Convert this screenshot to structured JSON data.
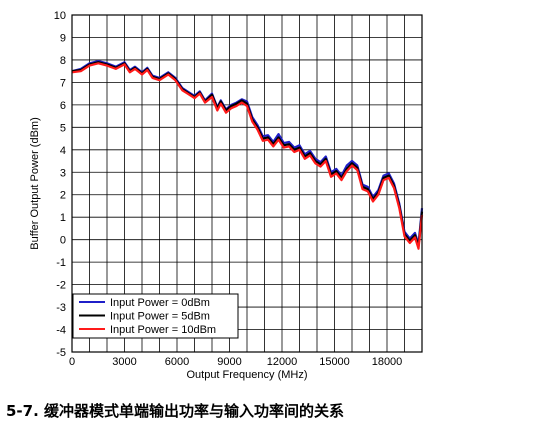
{
  "caption": "5-7. 缓冲器模式单端输出功率与输入功率间的关系",
  "chart_data": {
    "type": "line",
    "title": "",
    "xlabel": "Output Frequency (MHz)",
    "ylabel": "Buffer Output Power (dBm)",
    "xlim": [
      0,
      20000
    ],
    "ylim": [
      -5,
      10
    ],
    "xticks": [
      0,
      3000,
      6000,
      9000,
      12000,
      15000,
      18000
    ],
    "xtick_labels": [
      "0",
      "3000",
      "6000",
      "9000",
      "12000",
      "15000",
      "18000"
    ],
    "yticks": [
      -5,
      -4,
      -3,
      -2,
      -1,
      0,
      1,
      2,
      3,
      4,
      5,
      6,
      7,
      8,
      9,
      10
    ],
    "ytick_labels": [
      "-5",
      "-4",
      "-3",
      "-2",
      "-1",
      "0",
      "1",
      "2",
      "3",
      "4",
      "5",
      "6",
      "7",
      "8",
      "9",
      "10"
    ],
    "grid": true,
    "legend_position": "bottom-left",
    "series": [
      {
        "name": "Input Power = 0dBm",
        "color": "#1f1fc8",
        "x": [
          0,
          500,
          1000,
          1500,
          2000,
          2500,
          3000,
          3300,
          3600,
          4000,
          4300,
          4600,
          5000,
          5500,
          5900,
          6300,
          6600,
          7000,
          7300,
          7600,
          8000,
          8300,
          8500,
          8800,
          9100,
          9400,
          9700,
          10000,
          10300,
          10600,
          10900,
          11200,
          11500,
          11800,
          12100,
          12400,
          12700,
          13000,
          13300,
          13600,
          13900,
          14200,
          14500,
          14800,
          15100,
          15400,
          15700,
          16000,
          16300,
          16600,
          16900,
          17200,
          17500,
          17800,
          18100,
          18400,
          18700,
          19000,
          19300,
          19600,
          19800,
          20000
        ],
        "y": [
          7.5,
          7.6,
          7.85,
          7.95,
          7.85,
          7.7,
          7.9,
          7.55,
          7.7,
          7.45,
          7.65,
          7.3,
          7.2,
          7.45,
          7.2,
          6.75,
          6.6,
          6.4,
          6.6,
          6.2,
          6.5,
          5.9,
          6.2,
          5.8,
          6.0,
          6.1,
          6.25,
          6.15,
          5.45,
          5.1,
          4.6,
          4.65,
          4.35,
          4.7,
          4.3,
          4.35,
          4.1,
          4.2,
          3.8,
          3.95,
          3.6,
          3.45,
          3.7,
          3.0,
          3.15,
          2.85,
          3.3,
          3.5,
          3.3,
          2.45,
          2.35,
          1.9,
          2.2,
          2.85,
          2.95,
          2.5,
          1.6,
          0.35,
          0.05,
          0.3,
          -0.2,
          1.4
        ]
      },
      {
        "name": "Input Power = 5dBm",
        "color": "#000000",
        "x": [
          0,
          500,
          1000,
          1500,
          2000,
          2500,
          3000,
          3300,
          3600,
          4000,
          4300,
          4600,
          5000,
          5500,
          5900,
          6300,
          6600,
          7000,
          7300,
          7600,
          8000,
          8300,
          8500,
          8800,
          9100,
          9400,
          9700,
          10000,
          10300,
          10600,
          10900,
          11200,
          11500,
          11800,
          12100,
          12400,
          12700,
          13000,
          13300,
          13600,
          13900,
          14200,
          14500,
          14800,
          15100,
          15400,
          15700,
          16000,
          16300,
          16600,
          16900,
          17200,
          17500,
          17800,
          18100,
          18400,
          18700,
          19000,
          19300,
          19600,
          19800,
          20000
        ],
        "y": [
          7.5,
          7.55,
          7.8,
          7.9,
          7.8,
          7.65,
          7.85,
          7.5,
          7.65,
          7.4,
          7.6,
          7.25,
          7.15,
          7.4,
          7.15,
          6.7,
          6.55,
          6.35,
          6.55,
          6.15,
          6.45,
          5.85,
          6.15,
          5.75,
          5.95,
          6.05,
          6.2,
          6.05,
          5.35,
          5.0,
          4.5,
          4.55,
          4.25,
          4.55,
          4.2,
          4.25,
          4.0,
          4.1,
          3.7,
          3.85,
          3.5,
          3.35,
          3.6,
          2.9,
          3.05,
          2.75,
          3.15,
          3.4,
          3.2,
          2.35,
          2.25,
          1.8,
          2.1,
          2.75,
          2.85,
          2.4,
          1.5,
          0.25,
          -0.05,
          0.2,
          -0.3,
          1.25
        ]
      },
      {
        "name": "Input Power = 10dBm",
        "color": "#ff1a1a",
        "x": [
          0,
          500,
          1000,
          1500,
          2000,
          2500,
          3000,
          3300,
          3600,
          4000,
          4300,
          4600,
          5000,
          5500,
          5900,
          6300,
          6600,
          7000,
          7300,
          7600,
          8000,
          8300,
          8500,
          8800,
          9100,
          9400,
          9700,
          10000,
          10300,
          10600,
          10900,
          11200,
          11500,
          11800,
          12100,
          12400,
          12700,
          13000,
          13300,
          13600,
          13900,
          14200,
          14500,
          14800,
          15100,
          15400,
          15700,
          16000,
          16300,
          16600,
          16900,
          17200,
          17500,
          17800,
          18100,
          18400,
          18700,
          19000,
          19300,
          19600,
          19800,
          20000
        ],
        "y": [
          7.45,
          7.5,
          7.75,
          7.85,
          7.75,
          7.6,
          7.8,
          7.45,
          7.6,
          7.35,
          7.55,
          7.2,
          7.1,
          7.35,
          7.1,
          6.65,
          6.5,
          6.3,
          6.5,
          6.1,
          6.35,
          5.75,
          6.05,
          5.65,
          5.85,
          5.95,
          6.1,
          5.95,
          5.25,
          4.9,
          4.4,
          4.45,
          4.15,
          4.45,
          4.1,
          4.15,
          3.9,
          4.0,
          3.6,
          3.75,
          3.4,
          3.25,
          3.5,
          2.8,
          2.95,
          2.65,
          3.05,
          3.3,
          3.1,
          2.25,
          2.15,
          1.7,
          2.0,
          2.65,
          2.75,
          2.3,
          1.4,
          0.15,
          -0.15,
          0.1,
          -0.4,
          1.1
        ]
      }
    ]
  }
}
